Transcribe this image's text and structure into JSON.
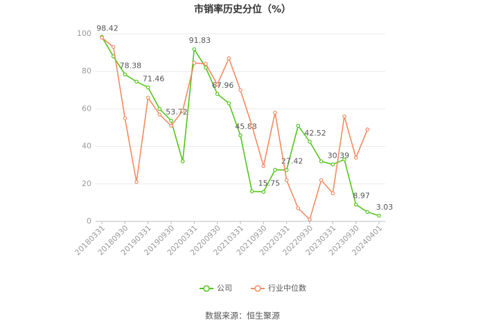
{
  "chart_data": {
    "type": "line",
    "title": "市销率历史分位（%）",
    "categories": [
      "20180331",
      null,
      "20180930",
      null,
      "20190331",
      null,
      "20190930",
      null,
      "20200331",
      null,
      "20200930",
      null,
      "20210331",
      null,
      "20210930",
      null,
      "20220331",
      null,
      "20220930",
      null,
      "20230331",
      null,
      "20230930",
      null,
      "20240401"
    ],
    "series": [
      {
        "name": "公司",
        "color": "#52c41a",
        "values": [
          98.42,
          88,
          78.38,
          74.5,
          71.46,
          60,
          53.72,
          32,
          91.83,
          82,
          67.96,
          63,
          45.88,
          16,
          15.75,
          27.5,
          27.42,
          51,
          42.52,
          32,
          30.39,
          33,
          8.97,
          5,
          3.03
        ]
      },
      {
        "name": "行业中位数",
        "color": "#f4895f",
        "values": [
          98,
          93,
          55,
          21,
          66,
          57,
          51,
          59,
          84.5,
          84,
          73,
          87,
          70,
          51,
          29.5,
          58,
          22,
          7,
          1,
          22,
          15,
          56,
          34,
          49,
          null
        ]
      }
    ],
    "ylim": [
      0,
      100
    ],
    "yticks": [
      0,
      20,
      40,
      60,
      80,
      100
    ],
    "grid": true,
    "legend": "bottom",
    "source": "数据来源：恒生聚源"
  }
}
